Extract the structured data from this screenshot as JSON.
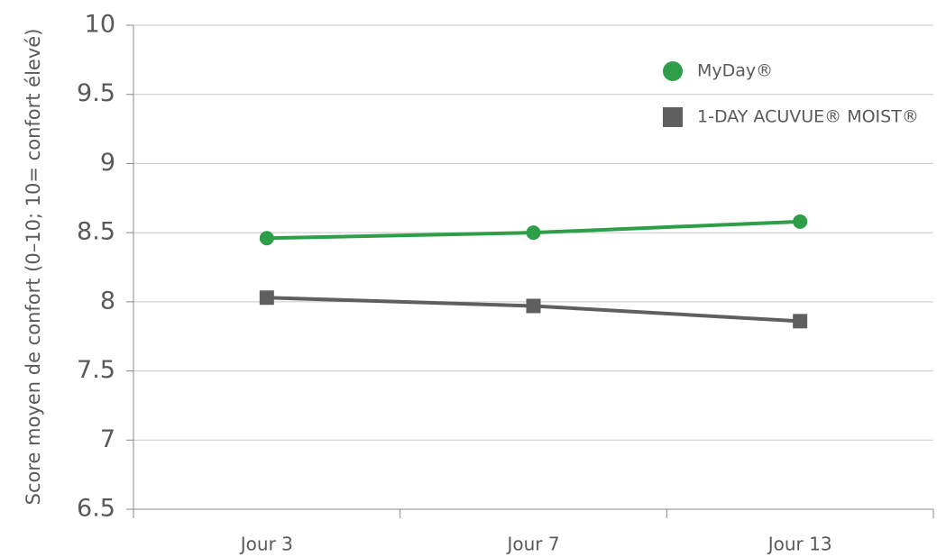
{
  "chart_data": {
    "type": "line",
    "ylabel": "Score moyen de confort (0–10; 10= confort élevé)",
    "categories": [
      "Jour 3",
      "Jour 7",
      "Jour 13"
    ],
    "series": [
      {
        "name": "MyDay®",
        "color": "#2e9e48",
        "marker": "circle",
        "values": [
          8.46,
          8.5,
          8.58
        ]
      },
      {
        "name": "1-DAY ACUVUE® MOIST®",
        "color": "#5f5f61",
        "marker": "square",
        "values": [
          8.03,
          7.97,
          7.86
        ]
      }
    ],
    "ylim": [
      6.5,
      10
    ],
    "yticks": [
      6.5,
      7,
      7.5,
      8,
      8.5,
      9,
      9.5,
      10
    ],
    "grid": true,
    "legend": "upper right"
  }
}
